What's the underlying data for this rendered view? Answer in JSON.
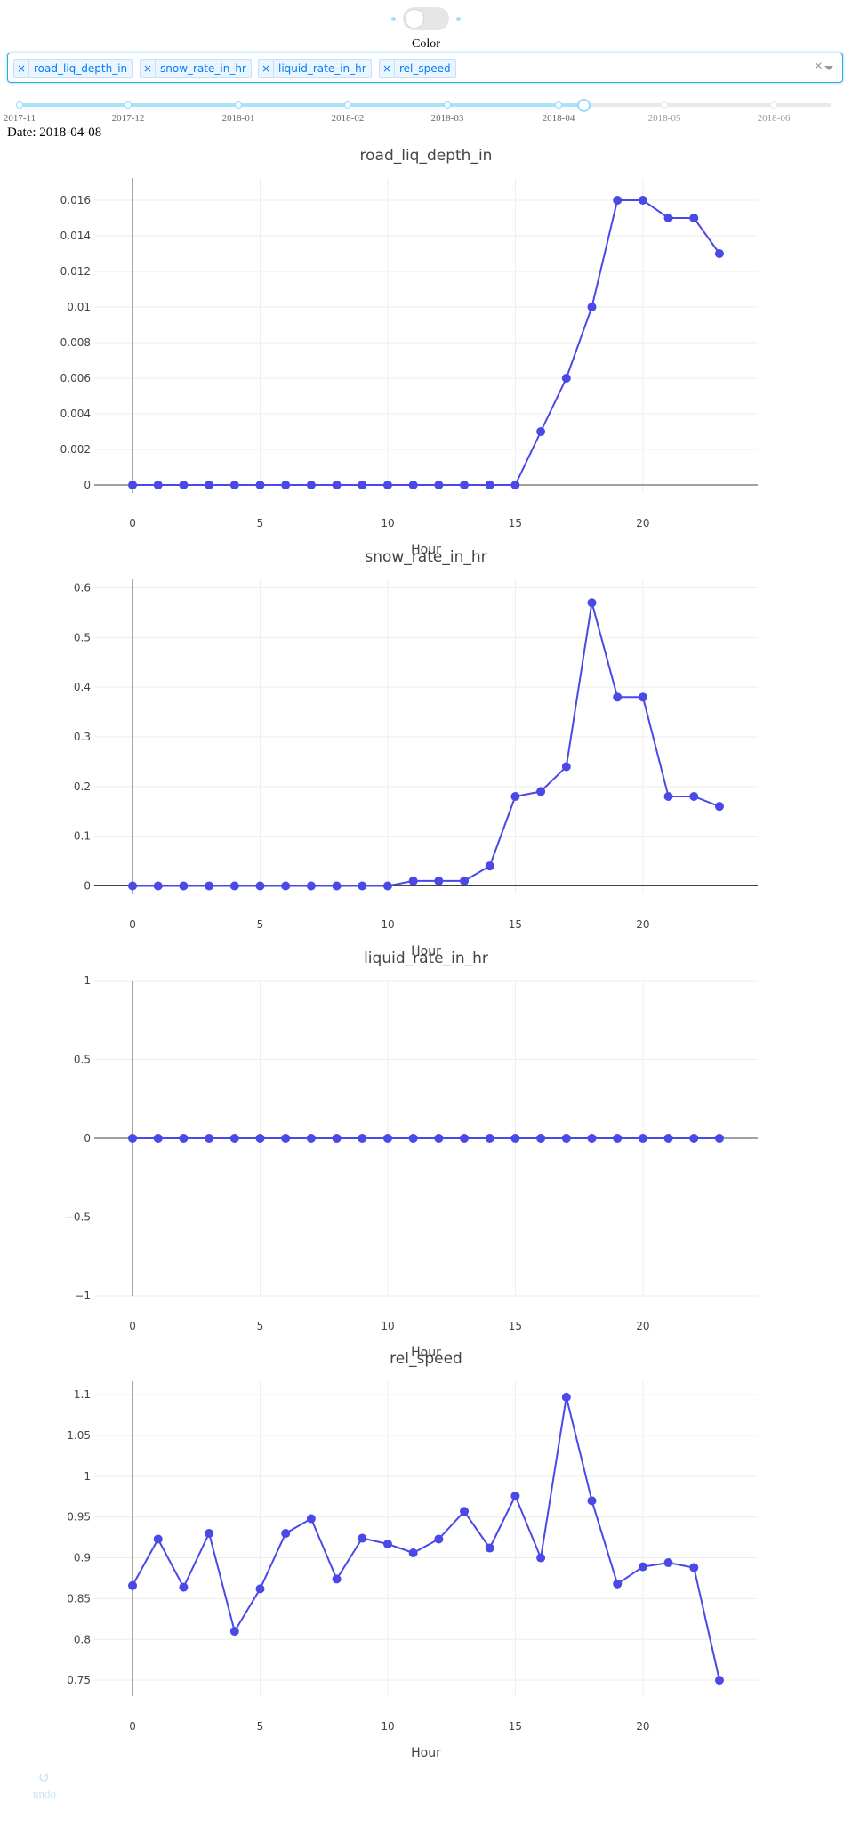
{
  "toggle": {
    "on": false
  },
  "color_label": "Color",
  "dropdown": {
    "selected": [
      "road_liq_depth_in",
      "snow_rate_in_hr",
      "liquid_rate_in_hr",
      "rel_speed"
    ],
    "remove_glyph": "×",
    "clear_glyph": "×"
  },
  "slider": {
    "marks": [
      "2017-11",
      "2017-12",
      "2018-01",
      "2018-02",
      "2018-03",
      "2018-04",
      "2018-05",
      "2018-06"
    ],
    "value": "2018-04-08"
  },
  "date_text": "Date: 2018-04-08",
  "colors": {
    "series": "#4b48e8",
    "accent": "#96dbfa",
    "tag_text": "#007eff"
  },
  "undo": {
    "label": "undo",
    "icon": "undo-icon"
  },
  "chart_data": [
    {
      "type": "line",
      "title": "road_liq_depth_in",
      "xlabel": "Hour",
      "ylabel": "",
      "x": [
        0,
        1,
        2,
        3,
        4,
        5,
        6,
        7,
        8,
        9,
        10,
        11,
        12,
        13,
        14,
        15,
        16,
        17,
        18,
        19,
        20,
        21,
        22,
        23
      ],
      "y": [
        0,
        0,
        0,
        0,
        0,
        0,
        0,
        0,
        0,
        0,
        0,
        0,
        0,
        0,
        0,
        0,
        0.003,
        0.006,
        0.01,
        0.016,
        0.016,
        0.015,
        0.015,
        0.013
      ],
      "xlim": [
        -1.5,
        24.5
      ],
      "ylim": [
        -0.00045,
        0.01725
      ],
      "xticks": [
        0,
        5,
        10,
        15,
        20
      ],
      "yticks": [
        0,
        0.002,
        0.004,
        0.006,
        0.008,
        0.01,
        0.012,
        0.014,
        0.016
      ],
      "ytick_labels": [
        "0",
        "0.002",
        "0.004",
        "0.006",
        "0.008",
        "0.01",
        "0.012",
        "0.014",
        "0.016"
      ],
      "grid": true,
      "mode": "lines+markers"
    },
    {
      "type": "line",
      "title": "snow_rate_in_hr",
      "xlabel": "Hour",
      "ylabel": "",
      "x": [
        0,
        1,
        2,
        3,
        4,
        5,
        6,
        7,
        8,
        9,
        10,
        11,
        12,
        13,
        14,
        15,
        16,
        17,
        18,
        19,
        20,
        21,
        22,
        23
      ],
      "y": [
        0,
        0,
        0,
        0,
        0,
        0,
        0,
        0,
        0,
        0,
        0,
        0.01,
        0.01,
        0.01,
        0.04,
        0.18,
        0.19,
        0.24,
        0.57,
        0.38,
        0.38,
        0.18,
        0.18,
        0.16
      ],
      "xlim": [
        -1.5,
        24.5
      ],
      "ylim": [
        -0.017,
        0.617
      ],
      "xticks": [
        0,
        5,
        10,
        15,
        20
      ],
      "yticks": [
        0,
        0.1,
        0.2,
        0.3,
        0.4,
        0.5,
        0.6
      ],
      "ytick_labels": [
        "0",
        "0.1",
        "0.2",
        "0.3",
        "0.4",
        "0.5",
        "0.6"
      ],
      "grid": true,
      "mode": "lines+markers"
    },
    {
      "type": "line",
      "title": "liquid_rate_in_hr",
      "xlabel": "Hour",
      "ylabel": "",
      "x": [
        0,
        1,
        2,
        3,
        4,
        5,
        6,
        7,
        8,
        9,
        10,
        11,
        12,
        13,
        14,
        15,
        16,
        17,
        18,
        19,
        20,
        21,
        22,
        23
      ],
      "y": [
        0,
        0,
        0,
        0,
        0,
        0,
        0,
        0,
        0,
        0,
        0,
        0,
        0,
        0,
        0,
        0,
        0,
        0,
        0,
        0,
        0,
        0,
        0,
        0
      ],
      "xlim": [
        -1.5,
        24.5
      ],
      "ylim": [
        -1,
        1
      ],
      "xticks": [
        0,
        5,
        10,
        15,
        20
      ],
      "yticks": [
        -1,
        -0.5,
        0,
        0.5,
        1
      ],
      "ytick_labels": [
        "−1",
        "−0.5",
        "0",
        "0.5",
        "1"
      ],
      "grid": true,
      "mode": "lines+markers"
    },
    {
      "type": "line",
      "title": "rel_speed",
      "xlabel": "Hour",
      "ylabel": "",
      "x": [
        0,
        1,
        2,
        3,
        4,
        5,
        6,
        7,
        8,
        9,
        10,
        11,
        12,
        13,
        14,
        15,
        16,
        17,
        18,
        19,
        20,
        21,
        22,
        23
      ],
      "y": [
        0.866,
        0.923,
        0.864,
        0.93,
        0.81,
        0.862,
        0.93,
        0.948,
        0.874,
        0.924,
        0.917,
        0.906,
        0.923,
        0.957,
        0.912,
        0.976,
        0.9,
        1.097,
        0.97,
        0.868,
        0.889,
        0.894,
        0.888,
        0.75
      ],
      "xlim": [
        -1.5,
        24.5
      ],
      "ylim": [
        0.7305,
        1.1165
      ],
      "xticks": [
        0,
        5,
        10,
        15,
        20
      ],
      "yticks": [
        0.75,
        0.8,
        0.85,
        0.9,
        0.95,
        1,
        1.05,
        1.1
      ],
      "ytick_labels": [
        "0.75",
        "0.8",
        "0.85",
        "0.9",
        "0.95",
        "1",
        "1.05",
        "1.1"
      ],
      "grid": true,
      "mode": "lines+markers"
    }
  ]
}
